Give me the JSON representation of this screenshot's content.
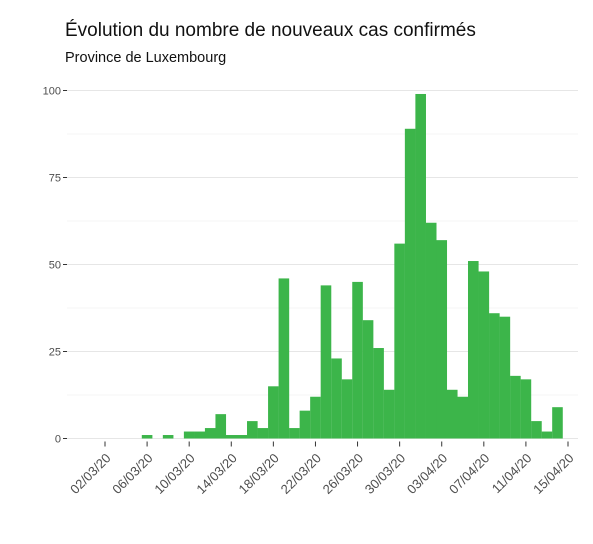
{
  "chart_data": {
    "type": "bar",
    "title": "Évolution du nombre de nouveaux cas confirmés",
    "subtitle": "Province de Luxembourg",
    "xlabel": "",
    "ylabel": "",
    "ylim": [
      0,
      100
    ],
    "y_ticks": [
      0,
      25,
      50,
      75,
      100
    ],
    "grid": true,
    "bar_color": "#3cb54a",
    "x_range": [
      "2020-03-02",
      "2020-04-15"
    ],
    "x_ticks": [
      {
        "date": "2020-03-02",
        "label": "02/03/20"
      },
      {
        "date": "2020-03-06",
        "label": "06/03/20"
      },
      {
        "date": "2020-03-10",
        "label": "10/03/20"
      },
      {
        "date": "2020-03-14",
        "label": "14/03/20"
      },
      {
        "date": "2020-03-18",
        "label": "18/03/20"
      },
      {
        "date": "2020-03-22",
        "label": "22/03/20"
      },
      {
        "date": "2020-03-26",
        "label": "26/03/20"
      },
      {
        "date": "2020-03-30",
        "label": "30/03/20"
      },
      {
        "date": "2020-04-03",
        "label": "03/04/20"
      },
      {
        "date": "2020-04-07",
        "label": "07/04/20"
      },
      {
        "date": "2020-04-11",
        "label": "11/04/20"
      },
      {
        "date": "2020-04-15",
        "label": "15/04/20"
      }
    ],
    "dates": [
      "2020-03-06",
      "2020-03-08",
      "2020-03-10",
      "2020-03-11",
      "2020-03-12",
      "2020-03-13",
      "2020-03-14",
      "2020-03-15",
      "2020-03-16",
      "2020-03-17",
      "2020-03-18",
      "2020-03-19",
      "2020-03-20",
      "2020-03-21",
      "2020-03-22",
      "2020-03-23",
      "2020-03-24",
      "2020-03-25",
      "2020-03-26",
      "2020-03-27",
      "2020-03-28",
      "2020-03-29",
      "2020-03-30",
      "2020-03-31",
      "2020-04-01",
      "2020-04-02",
      "2020-04-03",
      "2020-04-04",
      "2020-04-05",
      "2020-04-06",
      "2020-04-07",
      "2020-04-08",
      "2020-04-09",
      "2020-04-10",
      "2020-04-11",
      "2020-04-12",
      "2020-04-13",
      "2020-04-14"
    ],
    "values": [
      1,
      1,
      2,
      2,
      3,
      7,
      1,
      1,
      5,
      3,
      15,
      46,
      3,
      8,
      12,
      44,
      23,
      17,
      45,
      34,
      26,
      14,
      56,
      89,
      99,
      62,
      57,
      14,
      12,
      51,
      48,
      36,
      35,
      18,
      17,
      5,
      2,
      9
    ]
  }
}
